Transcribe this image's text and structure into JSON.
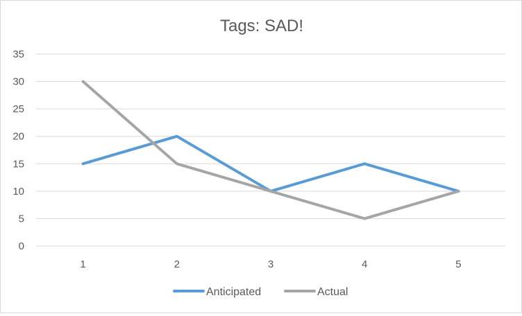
{
  "chart_data": {
    "type": "line",
    "title": "Tags: SAD!",
    "xlabel": "",
    "ylabel": "",
    "categories": [
      "1",
      "2",
      "3",
      "4",
      "5"
    ],
    "ylim": [
      0,
      35
    ],
    "yticks": [
      "0",
      "5",
      "10",
      "15",
      "20",
      "25",
      "30",
      "35"
    ],
    "grid": true,
    "legend_position": "bottom",
    "series": [
      {
        "name": "Anticipated",
        "values": [
          15,
          20,
          10,
          15,
          10
        ],
        "color": "#5b9bd5"
      },
      {
        "name": "Actual",
        "values": [
          30,
          15,
          10,
          5,
          10
        ],
        "color": "#a5a5a5"
      }
    ]
  }
}
